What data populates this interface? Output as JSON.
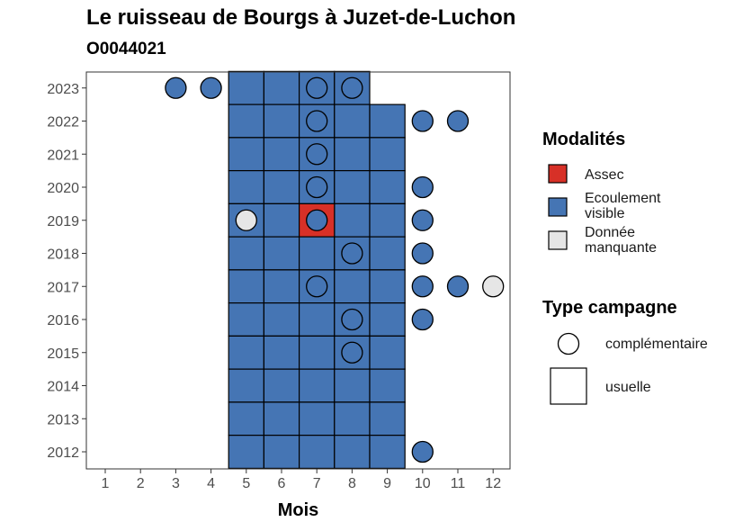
{
  "title": "Le ruisseau de Bourgs à Juzet-de-Luchon",
  "subtitle": "O0044021",
  "colors": {
    "assec": "#D73027",
    "ecoulement": "#4575B4",
    "manquante": "#E6E6E6"
  },
  "chart_data": {
    "type": "heatmap",
    "xlabel": "Mois",
    "ylabel": "",
    "x_ticks": [
      1,
      2,
      3,
      4,
      5,
      6,
      7,
      8,
      9,
      10,
      11,
      12
    ],
    "y_ticks": [
      2012,
      2013,
      2014,
      2015,
      2016,
      2017,
      2018,
      2019,
      2020,
      2021,
      2022,
      2023
    ],
    "grid": false,
    "legend_position": "right",
    "tiles": [
      {
        "year": 2023,
        "months": [
          5,
          6,
          7,
          8
        ],
        "status": "ecoulement"
      },
      {
        "year": 2022,
        "months": [
          5,
          6,
          7,
          8,
          9
        ],
        "status": "ecoulement"
      },
      {
        "year": 2021,
        "months": [
          5,
          6,
          7,
          8,
          9
        ],
        "status": "ecoulement"
      },
      {
        "year": 2020,
        "months": [
          5,
          6,
          7,
          8,
          9
        ],
        "status": "ecoulement"
      },
      {
        "year": 2019,
        "months": [
          5,
          6,
          8,
          9
        ],
        "status": "ecoulement"
      },
      {
        "year": 2019,
        "months": [
          7
        ],
        "status": "assec"
      },
      {
        "year": 2018,
        "months": [
          5,
          6,
          7,
          8,
          9
        ],
        "status": "ecoulement"
      },
      {
        "year": 2017,
        "months": [
          5,
          6,
          7,
          8,
          9
        ],
        "status": "ecoulement"
      },
      {
        "year": 2016,
        "months": [
          5,
          6,
          7,
          8,
          9
        ],
        "status": "ecoulement"
      },
      {
        "year": 2015,
        "months": [
          5,
          6,
          7,
          8,
          9
        ],
        "status": "ecoulement"
      },
      {
        "year": 2014,
        "months": [
          5,
          6,
          7,
          8,
          9
        ],
        "status": "ecoulement"
      },
      {
        "year": 2013,
        "months": [
          5,
          6,
          7,
          8,
          9
        ],
        "status": "ecoulement"
      },
      {
        "year": 2012,
        "months": [
          5,
          6,
          7,
          8,
          9
        ],
        "status": "ecoulement"
      }
    ],
    "points": [
      {
        "year": 2023,
        "month": 3,
        "status": "ecoulement"
      },
      {
        "year": 2023,
        "month": 4,
        "status": "ecoulement"
      },
      {
        "year": 2023,
        "month": 7,
        "status": "ecoulement"
      },
      {
        "year": 2023,
        "month": 8,
        "status": "ecoulement"
      },
      {
        "year": 2022,
        "month": 7,
        "status": "ecoulement"
      },
      {
        "year": 2022,
        "month": 10,
        "status": "ecoulement"
      },
      {
        "year": 2022,
        "month": 11,
        "status": "ecoulement"
      },
      {
        "year": 2021,
        "month": 7,
        "status": "ecoulement"
      },
      {
        "year": 2020,
        "month": 7,
        "status": "ecoulement"
      },
      {
        "year": 2020,
        "month": 10,
        "status": "ecoulement"
      },
      {
        "year": 2019,
        "month": 5,
        "status": "manquante"
      },
      {
        "year": 2019,
        "month": 7,
        "status": "ecoulement"
      },
      {
        "year": 2019,
        "month": 10,
        "status": "ecoulement"
      },
      {
        "year": 2018,
        "month": 8,
        "status": "ecoulement"
      },
      {
        "year": 2018,
        "month": 10,
        "status": "ecoulement"
      },
      {
        "year": 2017,
        "month": 7,
        "status": "ecoulement"
      },
      {
        "year": 2017,
        "month": 10,
        "status": "ecoulement"
      },
      {
        "year": 2017,
        "month": 11,
        "status": "ecoulement"
      },
      {
        "year": 2017,
        "month": 12,
        "status": "manquante"
      },
      {
        "year": 2016,
        "month": 8,
        "status": "ecoulement"
      },
      {
        "year": 2016,
        "month": 10,
        "status": "ecoulement"
      },
      {
        "year": 2015,
        "month": 8,
        "status": "ecoulement"
      },
      {
        "year": 2012,
        "month": 10,
        "status": "ecoulement"
      }
    ]
  },
  "legend": {
    "modalites_title": "Modalités",
    "modalites": [
      {
        "key": "assec",
        "label": "Assec"
      },
      {
        "key": "ecoulement",
        "label": "Ecoulement visible"
      },
      {
        "key": "manquante",
        "label": "Donnée manquante"
      }
    ],
    "type_title": "Type campagne",
    "types": [
      {
        "key": "complementaire",
        "label": "complémentaire"
      },
      {
        "key": "usuelle",
        "label": "usuelle"
      }
    ]
  }
}
